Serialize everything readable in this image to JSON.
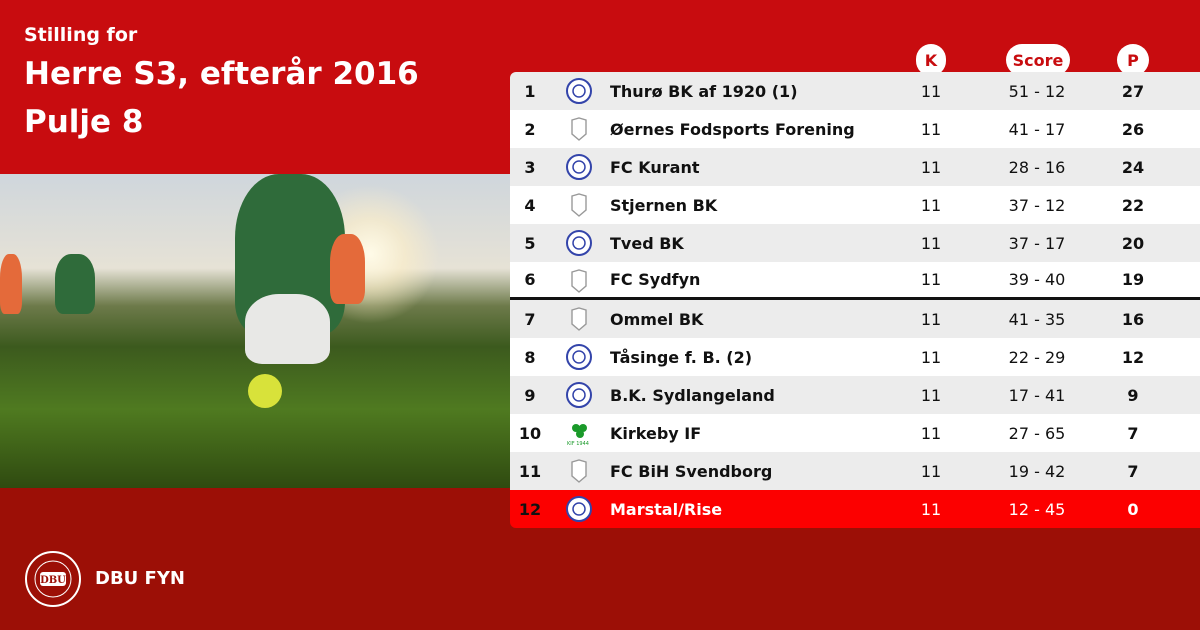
{
  "header": {
    "subtitle": "Stilling for",
    "title_line1": "Herre S3, efterår 2016",
    "title_line2": "Pulje 8"
  },
  "columns": {
    "games": "K",
    "score": "Score",
    "points": "P"
  },
  "rows": [
    {
      "rank": "1",
      "logo": "club-crest-icon",
      "team": "Thurø BK af 1920 (1)",
      "games": "11",
      "score": "51 - 12",
      "points": "27"
    },
    {
      "rank": "2",
      "logo": "default-shield-icon",
      "team": "Øernes Fodsports Forening",
      "games": "11",
      "score": "41 - 17",
      "points": "26"
    },
    {
      "rank": "3",
      "logo": "club-crest-icon",
      "team": "FC Kurant",
      "games": "11",
      "score": "28 - 16",
      "points": "24"
    },
    {
      "rank": "4",
      "logo": "default-shield-icon",
      "team": "Stjernen BK",
      "games": "11",
      "score": "37 - 12",
      "points": "22"
    },
    {
      "rank": "5",
      "logo": "club-crest-icon",
      "team": "Tved BK",
      "games": "11",
      "score": "37 - 17",
      "points": "20"
    },
    {
      "rank": "6",
      "logo": "default-shield-icon",
      "team": "FC Sydfyn",
      "games": "11",
      "score": "39 - 40",
      "points": "19"
    },
    {
      "rank": "7",
      "logo": "default-shield-icon",
      "team": "Ommel BK",
      "games": "11",
      "score": "41 - 35",
      "points": "16"
    },
    {
      "rank": "8",
      "logo": "club-crest-icon",
      "team": "Tåsinge  f. B. (2)",
      "games": "11",
      "score": "22 - 29",
      "points": "12"
    },
    {
      "rank": "9",
      "logo": "club-crest-icon",
      "team": "B.K. Sydlangeland",
      "games": "11",
      "score": "17 - 41",
      "points": "9"
    },
    {
      "rank": "10",
      "logo": "clover-icon",
      "team": "Kirkeby IF",
      "games": "11",
      "score": "27 - 65",
      "points": "7"
    },
    {
      "rank": "11",
      "logo": "default-shield-icon",
      "team": "FC BiH Svendborg",
      "games": "11",
      "score": "19 - 42",
      "points": "7"
    },
    {
      "rank": "12",
      "logo": "club-crest-icon",
      "team": "Marstal/Rise",
      "games": "11",
      "score": "12 - 45",
      "points": "0"
    }
  ],
  "footer": {
    "brand": "DBU FYN",
    "seal_text": "DANSK BOLDSPIL-UNION 1889"
  },
  "colors": {
    "primary_red": "#c80c0f",
    "footer_red": "#9c0f06",
    "relegation": "#fc0000"
  }
}
